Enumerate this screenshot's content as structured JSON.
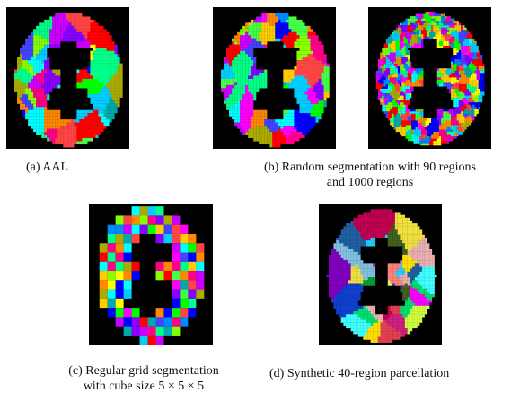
{
  "figure": {
    "panels": [
      {
        "id": "aal",
        "style": "aal"
      },
      {
        "id": "random90",
        "style": "random90"
      },
      {
        "id": "random1000",
        "style": "random1000"
      },
      {
        "id": "grid",
        "style": "grid"
      },
      {
        "id": "synthetic40",
        "style": "synthetic"
      }
    ],
    "captions": {
      "a": "(a) AAL",
      "b_line1": "(b) Random segmentation with 90 regions",
      "b_line2": "and 1000 regions",
      "c_line1": "(c) Regular grid segmentation",
      "c_line2": "with cube size 5 × 5 × 5",
      "d": "(d) Synthetic 40-region parcellation"
    },
    "palette": [
      "#ff0000",
      "#00ff00",
      "#0000ff",
      "#ffff00",
      "#ff00ff",
      "#00ffff",
      "#ff8800",
      "#88ff00",
      "#0088ff",
      "#ff0088",
      "#8800ff",
      "#00ff88",
      "#ffcc00",
      "#cc00ff",
      "#00ccff",
      "#ff4444",
      "#44ff44",
      "#4444ff",
      "#aaaa00",
      "#00aaaa"
    ],
    "synthetic_palette": [
      "#e8b0b0",
      "#e04050",
      "#00e070",
      "#1040d0",
      "#80c0e0",
      "#d02080",
      "#ff00ff",
      "#40ffff",
      "#ffe000",
      "#00a030",
      "#406020",
      "#8000c0",
      "#f0e040",
      "#d0ff40",
      "#c00050",
      "#20d0ff",
      "#ff8080",
      "#2060a0"
    ]
  }
}
